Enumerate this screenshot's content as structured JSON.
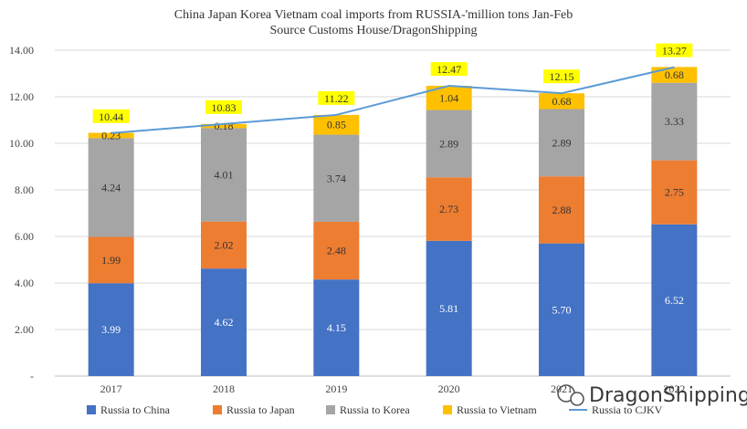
{
  "chart_data": {
    "type": "bar",
    "stacked": true,
    "title": "China Japan Korea Vietnam coal imports from RUSSIA-'million tons Jan-Feb",
    "subtitle": "Source Customs House/DragonShipping",
    "categories": [
      "2017",
      "2018",
      "2019",
      "2020",
      "2021",
      "2022"
    ],
    "series": [
      {
        "name": "Russia to China",
        "values": [
          3.99,
          4.62,
          4.15,
          5.81,
          5.7,
          6.52
        ],
        "color": "#4472c4",
        "labels": [
          "3.99",
          "4.62",
          "4.15",
          "5.81",
          "5.70",
          "6.52"
        ]
      },
      {
        "name": "Russia to Japan",
        "values": [
          1.99,
          2.02,
          2.48,
          2.73,
          2.88,
          2.75
        ],
        "color": "#ed7d31",
        "labels": [
          "1.99",
          "2.02",
          "2.48",
          "2.73",
          "2.88",
          "2.75"
        ]
      },
      {
        "name": "Russia to Korea",
        "values": [
          4.24,
          4.01,
          3.74,
          2.89,
          2.89,
          3.33
        ],
        "color": "#a5a5a5",
        "labels": [
          "4.24",
          "4.01",
          "3.74",
          "2.89",
          "2.89",
          "3.33"
        ]
      },
      {
        "name": "Russia to Vietnam",
        "values": [
          0.23,
          0.18,
          0.85,
          1.04,
          0.68,
          0.68
        ],
        "color": "#ffc000",
        "labels": [
          "0.23",
          "0.18",
          "0.85",
          "1.04",
          "0.68",
          "0.68"
        ]
      }
    ],
    "line": {
      "name": "Russia to CJKV",
      "values": [
        10.44,
        10.83,
        11.22,
        12.47,
        12.15,
        13.27
      ],
      "labels": [
        "10.44",
        "10.83",
        "11.22",
        "12.47",
        "12.15",
        "13.27"
      ],
      "color": "#5b9bd5"
    },
    "ylim": [
      0,
      14
    ],
    "yticks": [
      "-",
      "2.00",
      "4.00",
      "6.00",
      "8.00",
      "10.00",
      "12.00",
      "14.00"
    ],
    "grid": true,
    "legend_position": "bottom",
    "total_label_bg": "#ffff00"
  },
  "watermark": {
    "text": "DragonShipping"
  }
}
